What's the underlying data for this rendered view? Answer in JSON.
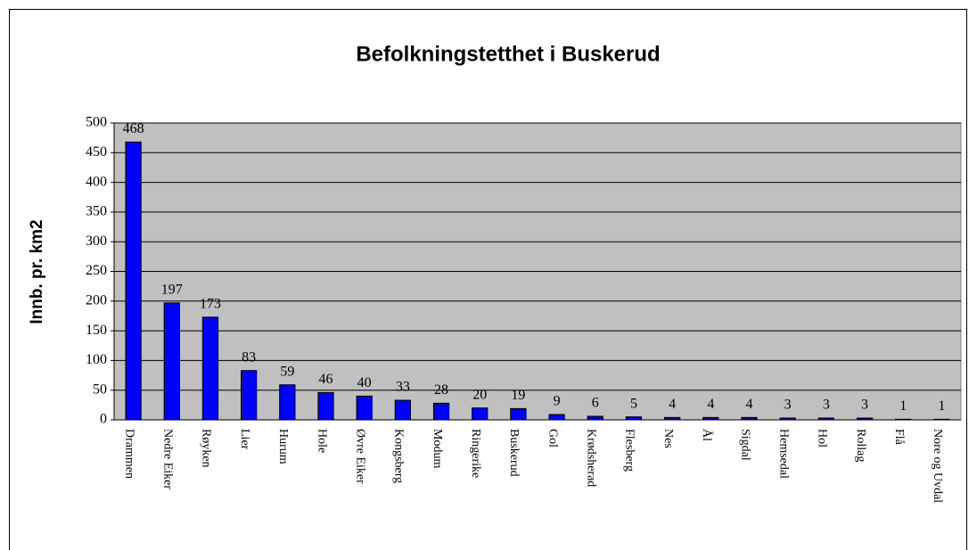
{
  "chart_data": {
    "type": "bar",
    "title": "Befolkningstetthet i Buskerud",
    "y_label": "Innb. pr. km2",
    "categories": [
      "Drammen",
      "Nedre Eiker",
      "Røyken",
      "Lier",
      "Hurum",
      "Hole",
      "Øvre Eiker",
      "Kongsberg",
      "Modum",
      "Ringerike",
      "Buskerud",
      "Gol",
      "Krødsherad",
      "Flesberg",
      "Nes",
      "Ål",
      "Sigdal",
      "Hemsedal",
      "Hol",
      "Rollag",
      "Flå",
      "Nore og Uvdal"
    ],
    "values": [
      468,
      197,
      173,
      83,
      59,
      46,
      40,
      33,
      28,
      20,
      19,
      9,
      6,
      5,
      4,
      4,
      4,
      3,
      3,
      3,
      1,
      1
    ],
    "color": "#0000ff",
    "ylim": [
      0,
      500
    ],
    "yticks": [
      0,
      50,
      100,
      150,
      200,
      250,
      300,
      350,
      400,
      450,
      500
    ],
    "grid": true
  }
}
